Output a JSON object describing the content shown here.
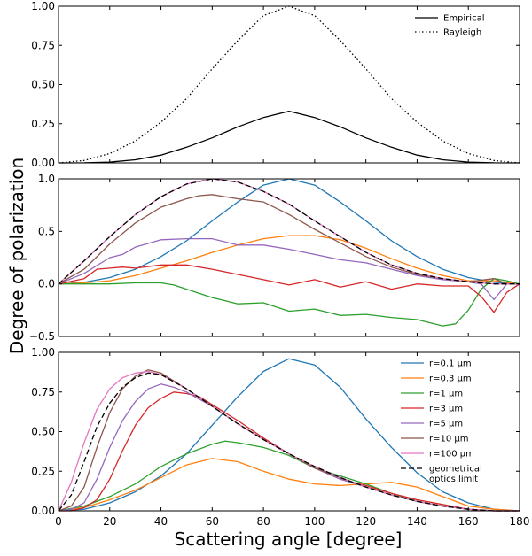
{
  "chart_data": {
    "type": "line",
    "ylabel": "Degree of polarization",
    "xlabel": "Scattering angle [degree]",
    "xlim": [
      0,
      180
    ],
    "x_ticks": [
      "0",
      "20",
      "40",
      "60",
      "80",
      "100",
      "120",
      "140",
      "160",
      "180"
    ],
    "panels": [
      {
        "ylim": [
          0,
          1
        ],
        "y_ticks": [
          "0.00",
          "0.25",
          "0.50",
          "0.75",
          "1.00"
        ],
        "legend_position": "top-right",
        "series": [
          {
            "name": "Empirical",
            "color": "#000000",
            "dash": "solid",
            "x": [
              0,
              10,
              20,
              30,
              40,
              50,
              60,
              70,
              80,
              90,
              100,
              110,
              120,
              130,
              140,
              150,
              160,
              170,
              180
            ],
            "y": [
              0,
              0.0005,
              0.005,
              0.02,
              0.05,
              0.1,
              0.16,
              0.23,
              0.29,
              0.33,
              0.29,
              0.23,
              0.16,
              0.1,
              0.05,
              0.02,
              0.005,
              0.0005,
              0
            ]
          },
          {
            "name": "Rayleigh",
            "color": "#000000",
            "dash": "dotted",
            "x": [
              0,
              10,
              20,
              30,
              40,
              50,
              60,
              70,
              80,
              90,
              100,
              110,
              120,
              130,
              140,
              150,
              160,
              170,
              180
            ],
            "y": [
              0,
              0.015,
              0.06,
              0.14,
              0.26,
              0.41,
              0.6,
              0.78,
              0.94,
              1.0,
              0.94,
              0.78,
              0.6,
              0.41,
              0.26,
              0.14,
              0.06,
              0.015,
              0
            ]
          }
        ]
      },
      {
        "ylim": [
          -0.5,
          1
        ],
        "y_ticks": [
          "−0.5",
          "0.0",
          "0.5",
          "1.0"
        ],
        "series": [
          {
            "name": "r=0.1 μm",
            "color": "#1f77b4",
            "dash": "solid",
            "x": [
              0,
              10,
              20,
              30,
              40,
              50,
              60,
              70,
              80,
              90,
              100,
              110,
              120,
              130,
              140,
              150,
              160,
              170,
              180
            ],
            "y": [
              0,
              0.015,
              0.06,
              0.14,
              0.26,
              0.41,
              0.6,
              0.78,
              0.94,
              1.0,
              0.94,
              0.78,
              0.6,
              0.41,
              0.26,
              0.14,
              0.06,
              0.015,
              0
            ]
          },
          {
            "name": "r=0.3 μm",
            "color": "#ff7f0e",
            "dash": "solid",
            "x": [
              0,
              10,
              20,
              30,
              40,
              50,
              60,
              70,
              80,
              90,
              100,
              110,
              120,
              130,
              140,
              150,
              160,
              170,
              180
            ],
            "y": [
              0,
              0.01,
              0.03,
              0.08,
              0.15,
              0.22,
              0.3,
              0.37,
              0.43,
              0.46,
              0.46,
              0.42,
              0.34,
              0.24,
              0.15,
              0.08,
              0.03,
              0.03,
              0
            ]
          },
          {
            "name": "r=1 μm",
            "color": "#2ca02c",
            "dash": "solid",
            "x": [
              0,
              10,
              20,
              30,
              40,
              45,
              50,
              60,
              70,
              80,
              90,
              100,
              110,
              120,
              130,
              140,
              150,
              155,
              160,
              165,
              170,
              175,
              180
            ],
            "y": [
              0,
              0,
              0,
              0.01,
              0.01,
              -0.01,
              -0.05,
              -0.13,
              -0.19,
              -0.18,
              -0.26,
              -0.24,
              -0.3,
              -0.29,
              -0.32,
              -0.34,
              -0.4,
              -0.38,
              -0.25,
              -0.05,
              0.05,
              0.03,
              0
            ]
          },
          {
            "name": "r=3 μm",
            "color": "#d62728",
            "dash": "solid",
            "x": [
              0,
              10,
              15,
              20,
              25,
              30,
              40,
              50,
              60,
              70,
              80,
              90,
              100,
              110,
              120,
              130,
              140,
              150,
              160,
              165,
              170,
              175,
              180
            ],
            "y": [
              0,
              0.05,
              0.14,
              0.15,
              0.16,
              0.15,
              0.18,
              0.18,
              0.14,
              0.09,
              0.04,
              -0.01,
              0.04,
              -0.03,
              0.02,
              -0.05,
              0.0,
              -0.02,
              -0.02,
              -0.12,
              -0.27,
              -0.08,
              0
            ]
          },
          {
            "name": "r=5 μm",
            "color": "#9467bd",
            "dash": "solid",
            "x": [
              0,
              10,
              20,
              25,
              30,
              40,
              50,
              60,
              70,
              80,
              90,
              100,
              110,
              120,
              130,
              140,
              150,
              160,
              165,
              170,
              175,
              180
            ],
            "y": [
              0,
              0.1,
              0.25,
              0.28,
              0.35,
              0.42,
              0.43,
              0.43,
              0.37,
              0.37,
              0.33,
              0.28,
              0.23,
              0.2,
              0.14,
              0.08,
              0.04,
              0.02,
              0.0,
              -0.15,
              0.0,
              0
            ]
          },
          {
            "name": "r=10 μm",
            "color": "#8c564b",
            "dash": "solid",
            "x": [
              0,
              10,
              20,
              30,
              40,
              50,
              55,
              60,
              70,
              80,
              90,
              100,
              110,
              120,
              130,
              140,
              150,
              160,
              170,
              175,
              180
            ],
            "y": [
              0,
              0.14,
              0.38,
              0.58,
              0.73,
              0.81,
              0.84,
              0.85,
              0.81,
              0.78,
              0.66,
              0.52,
              0.39,
              0.26,
              0.16,
              0.09,
              0.05,
              0.02,
              0.05,
              0.0,
              0
            ]
          },
          {
            "name": "r=100 μm",
            "color": "#e377c2",
            "dash": "solid",
            "x": [
              0,
              10,
              20,
              30,
              40,
              50,
              60,
              70,
              80,
              90,
              100,
              110,
              120,
              130,
              140,
              150,
              160,
              170,
              180
            ],
            "y": [
              0,
              0.22,
              0.45,
              0.66,
              0.83,
              0.95,
              1.0,
              0.97,
              0.88,
              0.76,
              0.6,
              0.45,
              0.3,
              0.18,
              0.1,
              0.05,
              0.02,
              0.0,
              0
            ]
          },
          {
            "name": "geometrical optics limit",
            "color": "#000000",
            "dash": "dashed",
            "x": [
              0,
              10,
              20,
              30,
              40,
              50,
              60,
              70,
              80,
              90,
              100,
              110,
              120,
              130,
              140,
              150,
              160,
              170,
              180
            ],
            "y": [
              0,
              0.22,
              0.45,
              0.66,
              0.83,
              0.95,
              1.0,
              0.97,
              0.88,
              0.76,
              0.6,
              0.45,
              0.3,
              0.18,
              0.1,
              0.05,
              0.02,
              0.0,
              0
            ]
          }
        ]
      },
      {
        "ylim": [
          0,
          1
        ],
        "y_ticks": [
          "0.00",
          "0.25",
          "0.50",
          "0.75",
          "1.00"
        ],
        "legend_position": "right",
        "series": [
          {
            "name": "r=0.1 μm",
            "color": "#1f77b4",
            "dash": "solid",
            "x": [
              0,
              10,
              20,
              30,
              40,
              50,
              60,
              70,
              80,
              90,
              100,
              110,
              120,
              130,
              140,
              150,
              160,
              170,
              180
            ],
            "y": [
              0,
              0.01,
              0.05,
              0.12,
              0.22,
              0.36,
              0.54,
              0.72,
              0.88,
              0.96,
              0.92,
              0.78,
              0.58,
              0.4,
              0.24,
              0.12,
              0.05,
              0.01,
              0
            ]
          },
          {
            "name": "r=0.3 μm",
            "color": "#ff7f0e",
            "dash": "solid",
            "x": [
              0,
              10,
              20,
              30,
              40,
              50,
              60,
              70,
              80,
              90,
              100,
              110,
              120,
              130,
              140,
              150,
              160,
              170,
              180
            ],
            "y": [
              0,
              0.02,
              0.07,
              0.13,
              0.21,
              0.29,
              0.33,
              0.31,
              0.25,
              0.2,
              0.17,
              0.16,
              0.17,
              0.18,
              0.15,
              0.09,
              0.03,
              0.01,
              0
            ]
          },
          {
            "name": "r=1 μm",
            "color": "#2ca02c",
            "dash": "solid",
            "x": [
              0,
              10,
              20,
              30,
              40,
              50,
              60,
              65,
              70,
              80,
              90,
              100,
              110,
              120,
              130,
              140,
              150,
              160,
              170,
              180
            ],
            "y": [
              0,
              0.03,
              0.09,
              0.17,
              0.28,
              0.36,
              0.42,
              0.44,
              0.43,
              0.4,
              0.35,
              0.27,
              0.22,
              0.17,
              0.11,
              0.06,
              0.03,
              0.01,
              0.0,
              0
            ]
          },
          {
            "name": "r=3 μm",
            "color": "#d62728",
            "dash": "solid",
            "x": [
              0,
              5,
              10,
              15,
              20,
              25,
              30,
              35,
              40,
              45,
              50,
              55,
              60,
              70,
              80,
              90,
              100,
              110,
              120,
              130,
              140,
              150,
              160,
              170,
              180
            ],
            "y": [
              0,
              0.0,
              0.02,
              0.07,
              0.2,
              0.38,
              0.54,
              0.65,
              0.71,
              0.75,
              0.74,
              0.72,
              0.67,
              0.57,
              0.46,
              0.36,
              0.27,
              0.2,
              0.16,
              0.11,
              0.07,
              0.04,
              0.01,
              0.0,
              0
            ]
          },
          {
            "name": "r=5 μm",
            "color": "#9467bd",
            "dash": "solid",
            "x": [
              0,
              5,
              10,
              15,
              20,
              25,
              30,
              35,
              40,
              45,
              50,
              60,
              70,
              80,
              90,
              100,
              110,
              120,
              130,
              140,
              150,
              160,
              170,
              180
            ],
            "y": [
              0,
              0.01,
              0.05,
              0.2,
              0.4,
              0.57,
              0.69,
              0.77,
              0.8,
              0.78,
              0.75,
              0.66,
              0.55,
              0.45,
              0.36,
              0.27,
              0.2,
              0.15,
              0.1,
              0.06,
              0.03,
              0.01,
              0.0,
              0
            ]
          },
          {
            "name": "r=10 μm",
            "color": "#8c564b",
            "dash": "solid",
            "x": [
              0,
              5,
              10,
              15,
              20,
              25,
              30,
              35,
              40,
              50,
              60,
              70,
              80,
              90,
              100,
              110,
              120,
              130,
              140,
              150,
              160,
              170,
              180
            ],
            "y": [
              0,
              0.03,
              0.15,
              0.4,
              0.62,
              0.77,
              0.85,
              0.89,
              0.87,
              0.77,
              0.66,
              0.55,
              0.45,
              0.36,
              0.27,
              0.21,
              0.15,
              0.1,
              0.06,
              0.03,
              0.01,
              0.0,
              0
            ]
          },
          {
            "name": "r=100 μm",
            "color": "#e377c2",
            "dash": "solid",
            "x": [
              0,
              5,
              10,
              15,
              20,
              25,
              30,
              35,
              40,
              50,
              60,
              70,
              80,
              90,
              100,
              110,
              120,
              130,
              140,
              150,
              160,
              170,
              180
            ],
            "y": [
              0,
              0.18,
              0.43,
              0.64,
              0.77,
              0.84,
              0.87,
              0.88,
              0.86,
              0.77,
              0.66,
              0.55,
              0.45,
              0.36,
              0.28,
              0.21,
              0.15,
              0.1,
              0.06,
              0.03,
              0.01,
              0.0,
              0
            ]
          },
          {
            "name": "geometrical optics limit",
            "color": "#000000",
            "dash": "dashed",
            "x": [
              0,
              5,
              10,
              15,
              20,
              25,
              30,
              35,
              40,
              50,
              60,
              70,
              80,
              90,
              100,
              110,
              120,
              130,
              140,
              150,
              160,
              170,
              180
            ],
            "y": [
              0,
              0.1,
              0.31,
              0.53,
              0.68,
              0.78,
              0.84,
              0.87,
              0.86,
              0.77,
              0.66,
              0.55,
              0.45,
              0.36,
              0.28,
              0.21,
              0.15,
              0.1,
              0.06,
              0.03,
              0.01,
              0.0,
              0
            ]
          }
        ]
      }
    ],
    "legends": {
      "top": [
        {
          "label": "Empirical",
          "color": "#000000",
          "dash": "solid"
        },
        {
          "label": "Rayleigh",
          "color": "#000000",
          "dash": "dotted"
        }
      ],
      "bottom": [
        {
          "label": "r=0.1 μm",
          "color": "#1f77b4",
          "dash": "solid"
        },
        {
          "label": "r=0.3 μm",
          "color": "#ff7f0e",
          "dash": "solid"
        },
        {
          "label": "r=1 μm",
          "color": "#2ca02c",
          "dash": "solid"
        },
        {
          "label": "r=3 μm",
          "color": "#d62728",
          "dash": "solid"
        },
        {
          "label": "r=5 μm",
          "color": "#9467bd",
          "dash": "solid"
        },
        {
          "label": "r=10 μm",
          "color": "#8c564b",
          "dash": "solid"
        },
        {
          "label": "r=100 μm",
          "color": "#e377c2",
          "dash": "solid"
        },
        {
          "label": "geometrical",
          "label2": "optics limit",
          "color": "#000000",
          "dash": "dashed"
        }
      ]
    }
  }
}
